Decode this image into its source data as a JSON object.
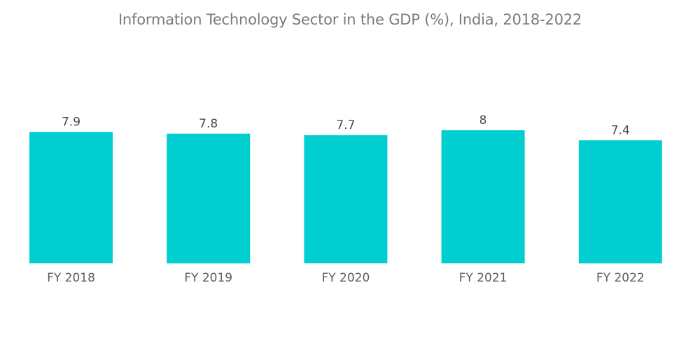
{
  "chart_data": {
    "type": "bar",
    "title": "Information Technology Sector in the GDP (%), India, 2018-2022",
    "xlabel": "",
    "ylabel": "",
    "categories": [
      "FY 2018",
      "FY 2019",
      "FY 2020",
      "FY 2021",
      "FY 2022"
    ],
    "values": [
      7.9,
      7.8,
      7.7,
      8,
      7.4
    ],
    "value_labels": [
      "7.9",
      "7.8",
      "7.7",
      "8",
      "7.4"
    ],
    "ylim": [
      0,
      8
    ],
    "grid": false,
    "legend": "none",
    "bar_color": "#00ced1"
  }
}
